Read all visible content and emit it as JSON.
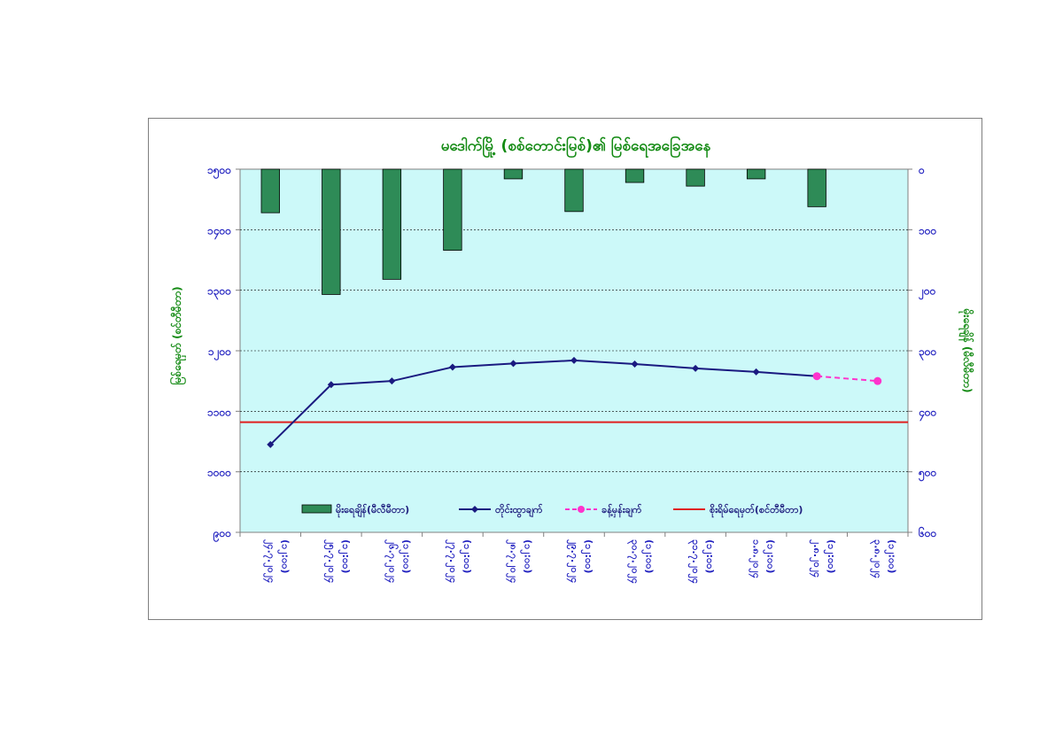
{
  "chart_data": {
    "type": "bar+line",
    "title": "မဒေါက်မြို့ (စစ်တောင်းမြစ်)၏ မြစ်ရေအခြေအနေ",
    "ylabel_left": "မြစ်ရေမှတ် (စင်တီမီတာ)",
    "ylabel_right": "မိုးရေချိန် (မီလီမီတာ)",
    "y_left": {
      "min": 900,
      "max": 1500,
      "ticks": [
        "၉၀၀",
        "၁၀၀၀",
        "၁၁၀၀",
        "၁၂၀၀",
        "၁၃၀၀",
        "၁၄၀၀",
        "၁၅၀၀"
      ]
    },
    "y_right": {
      "min": 0,
      "max": 600,
      "inverted": true,
      "ticks": [
        "၀",
        "၁၀၀",
        "၂၀၀",
        "၃၀၀",
        "၄၀၀",
        "၅၀၀",
        "၆၀၀"
      ]
    },
    "categories": [
      [
        "၂၄.၇.၂၀၂၄",
        "(၁၂:၀၀)"
      ],
      [
        "၂၅.၇.၂၀၂၄",
        "(၁၂:၀၀)"
      ],
      [
        "၂၆.၇.၂၀၂၄",
        "(၁၂:၀၀)"
      ],
      [
        "၂၇.၇.၂၀၂၄",
        "(၁၂:၀၀)"
      ],
      [
        "၂၈.၇.၂၀၂၄",
        "(၁၂:၀၀)"
      ],
      [
        "၂၉.၇.၂၀၂၄",
        "(၁၂:၀၀)"
      ],
      [
        "၃၀.၇.၂၀၂၄",
        "(၁၂:၀၀)"
      ],
      [
        "၃၁.၇.၂၀၂၄",
        "(၁၂:၀၀)"
      ],
      [
        "၁.၈.၂၀၂၄",
        "(၁၂:၀၀)"
      ],
      [
        "၂.၈.၂၀၂၄",
        "(၁၂:၀၀)"
      ],
      [
        "၃.၈.၂၀၂၄",
        "(၁၂:၀၀)"
      ]
    ],
    "series": [
      {
        "name": "မိုးရေချိန်(မီလီမီတာ)",
        "kind": "bar",
        "axis": "right",
        "color": "#2e8b57",
        "values": [
          72,
          207,
          182,
          134,
          16,
          70,
          22,
          28,
          16,
          62,
          null
        ]
      },
      {
        "name": "တိုင်းထွာချက်",
        "kind": "line",
        "axis": "left",
        "color": "#1a1a80",
        "values": [
          1045,
          1144,
          1150,
          1173,
          1179,
          1184,
          1178,
          1171,
          1165,
          1158,
          null
        ]
      },
      {
        "name": "ခန့်မှန်းချက်",
        "kind": "dashed-line",
        "axis": "left",
        "color": "#ff33cc",
        "values": [
          null,
          null,
          null,
          null,
          null,
          null,
          null,
          null,
          null,
          1158,
          1150
        ]
      },
      {
        "name": "စိုးရိမ်ရေမှတ်(စင်တီမီတာ)",
        "kind": "hline",
        "axis": "left",
        "color": "#e02020",
        "value": 1082
      }
    ],
    "grid": true,
    "legend_position": "bottom-inside",
    "plot_bg": "#ccf9f9"
  }
}
